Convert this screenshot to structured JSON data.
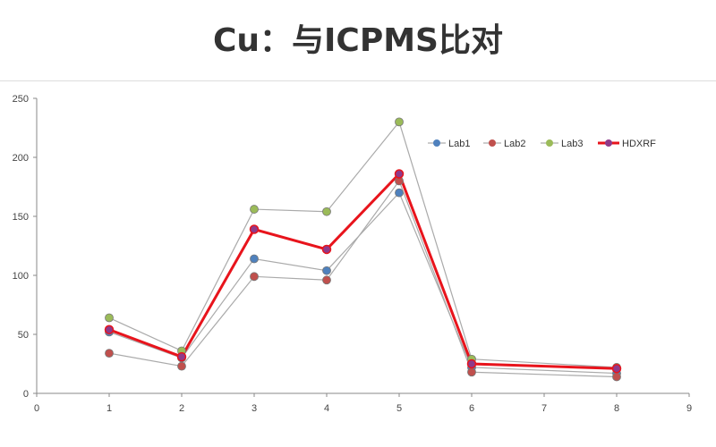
{
  "title": "Cu：与ICPMS比对",
  "chart_data": {
    "type": "line",
    "title": "Cu：与ICPMS比对",
    "xlabel": "",
    "ylabel": "",
    "xlim": [
      0,
      9
    ],
    "ylim": [
      0,
      250
    ],
    "xticks": [
      0,
      1,
      2,
      3,
      4,
      5,
      6,
      7,
      8,
      9
    ],
    "yticks": [
      0,
      50,
      100,
      150,
      200,
      250
    ],
    "grid": false,
    "legend_position": "top-right",
    "x": [
      1,
      2,
      3,
      4,
      5,
      6,
      8
    ],
    "series": [
      {
        "name": "Lab1",
        "color": "#4f81bd",
        "values": [
          52,
          30,
          114,
          104,
          170,
          22,
          17
        ]
      },
      {
        "name": "Lab2",
        "color": "#c0504d",
        "values": [
          34,
          23,
          99,
          96,
          180,
          18,
          14
        ]
      },
      {
        "name": "Lab3",
        "color": "#9bbb59",
        "values": [
          64,
          36,
          156,
          154,
          230,
          29,
          22
        ]
      },
      {
        "name": "HDXRF",
        "color": "#e8141c",
        "values": [
          54,
          31,
          139,
          122,
          186,
          25,
          21
        ]
      }
    ]
  }
}
